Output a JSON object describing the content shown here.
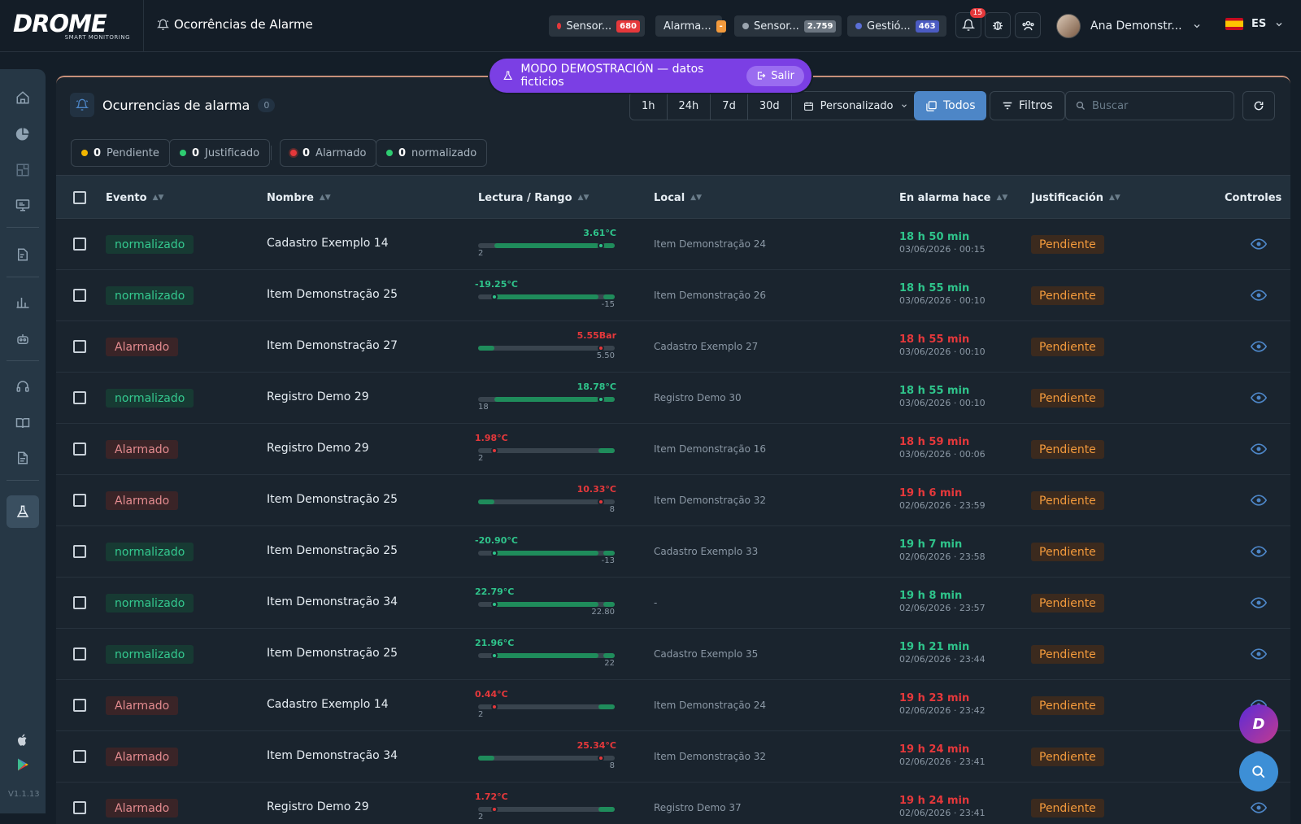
{
  "app": {
    "logo_text": "DROME",
    "logo_sub": "SMART MONITORING",
    "page_title": "Ocorrências de Alarme"
  },
  "header_pills": [
    {
      "label": "Sensor...",
      "count": "680",
      "dot": "#e5383b",
      "count_bg": "#e5383b"
    },
    {
      "label": "Alarma...",
      "count": "-",
      "dot": "",
      "count_bg": "#f39a3c"
    },
    {
      "label": "Sensor...",
      "count": "2.759",
      "dot": "#9aa4ae",
      "count_bg": "#6b7580"
    },
    {
      "label": "Gestió...",
      "count": "463",
      "dot": "#5b6fd6",
      "count_bg": "#4b5bc2"
    }
  ],
  "notifications_count": "15",
  "user": {
    "name": "Ana Demonstr...",
    "lang": "ES"
  },
  "version": "V1.1.13",
  "demo_banner": {
    "text": "MODO DEMOSTRACIÓN — datos ficticios",
    "exit": "Salir"
  },
  "card": {
    "title": "Ocurrencias de alarma",
    "count": "0",
    "ranges": [
      "1h",
      "24h",
      "7d",
      "30d"
    ],
    "custom": "Personalizado",
    "todos": "Todos",
    "filters": "Filtros",
    "search_placeholder": "Buscar"
  },
  "summary": [
    {
      "count": "0",
      "label": "Pendiente",
      "color": "#f2b600"
    },
    {
      "count": "0",
      "label": "Justificado",
      "color": "#2ecc71"
    },
    {
      "count": "0",
      "label": "Alarmado",
      "color": "#e5383b"
    },
    {
      "count": "0",
      "label": "normalizado",
      "color": "#2ecc71"
    }
  ],
  "columns": {
    "evento": "Evento",
    "nombre": "Nombre",
    "lectura": "Lectura / Rango",
    "local": "Local",
    "en_alarma": "En alarma hace",
    "justificacion": "Justificación",
    "controles": "Controles"
  },
  "rows": [
    {
      "event": "normalizado",
      "status": "norm",
      "name": "Cadastro Exemplo 14",
      "reading": "3.61°C",
      "limit": "2",
      "level": 0.9,
      "limit_side": "left",
      "local": "Item Demonstração 24",
      "duration": "18 h 50 min",
      "date": "03/06/2026 · 00:15",
      "justification": "Pendiente"
    },
    {
      "event": "normalizado",
      "status": "norm",
      "name": "Item Demonstração 25",
      "reading": "-19.25°C",
      "limit": "-15",
      "level": 0.12,
      "limit_side": "right",
      "local": "Item Demonstração 26",
      "duration": "18 h 55 min",
      "date": "03/06/2026 · 00:10",
      "justification": "Pendiente"
    },
    {
      "event": "Alarmado",
      "status": "alarm",
      "name": "Item Demonstração 27",
      "reading": "5.55Bar",
      "limit": "5.50",
      "level": 0.9,
      "limit_side": "right",
      "local": "Cadastro Exemplo 27",
      "duration": "18 h 55 min",
      "date": "03/06/2026 · 00:10",
      "justification": "Pendiente"
    },
    {
      "event": "normalizado",
      "status": "norm",
      "name": "Registro Demo 29",
      "reading": "18.78°C",
      "limit": "18",
      "level": 0.9,
      "limit_side": "left",
      "local": "Registro Demo 30",
      "duration": "18 h 55 min",
      "date": "03/06/2026 · 00:10",
      "justification": "Pendiente"
    },
    {
      "event": "Alarmado",
      "status": "alarm",
      "name": "Registro Demo 29",
      "reading": "1.98°C",
      "limit": "2",
      "level": 0.12,
      "limit_side": "left",
      "local": "Item Demonstração 16",
      "duration": "18 h 59 min",
      "date": "03/06/2026 · 00:06",
      "justification": "Pendiente"
    },
    {
      "event": "Alarmado",
      "status": "alarm",
      "name": "Item Demonstração 25",
      "reading": "10.33°C",
      "limit": "8",
      "level": 0.9,
      "limit_side": "right",
      "local": "Item Demonstração 32",
      "duration": "19 h 6 min",
      "date": "02/06/2026 · 23:59",
      "justification": "Pendiente"
    },
    {
      "event": "normalizado",
      "status": "norm",
      "name": "Item Demonstração 25",
      "reading": "-20.90°C",
      "limit": "-13",
      "level": 0.12,
      "limit_side": "right",
      "local": "Cadastro Exemplo 33",
      "duration": "19 h 7 min",
      "date": "02/06/2026 · 23:58",
      "justification": "Pendiente"
    },
    {
      "event": "normalizado",
      "status": "norm",
      "name": "Item Demonstração 34",
      "reading": "22.79°C",
      "limit": "22.80",
      "level": 0.12,
      "limit_side": "right",
      "local": "-",
      "duration": "19 h 8 min",
      "date": "02/06/2026 · 23:57",
      "justification": "Pendiente"
    },
    {
      "event": "normalizado",
      "status": "norm",
      "name": "Item Demonstração 25",
      "reading": "21.96°C",
      "limit": "22",
      "level": 0.12,
      "limit_side": "right",
      "local": "Cadastro Exemplo 35",
      "duration": "19 h 21 min",
      "date": "02/06/2026 · 23:44",
      "justification": "Pendiente"
    },
    {
      "event": "Alarmado",
      "status": "alarm",
      "name": "Cadastro Exemplo 14",
      "reading": "0.44°C",
      "limit": "2",
      "level": 0.12,
      "limit_side": "left",
      "local": "Item Demonstração 24",
      "duration": "19 h 23 min",
      "date": "02/06/2026 · 23:42",
      "justification": "Pendiente"
    },
    {
      "event": "Alarmado",
      "status": "alarm",
      "name": "Item Demonstração 34",
      "reading": "25.34°C",
      "limit": "8",
      "level": 0.9,
      "limit_side": "right",
      "local": "Item Demonstração 32",
      "duration": "19 h 24 min",
      "date": "02/06/2026 · 23:41",
      "justification": "Pendiente"
    },
    {
      "event": "Alarmado",
      "status": "alarm",
      "name": "Registro Demo 29",
      "reading": "1.72°C",
      "limit": "2",
      "level": 0.12,
      "limit_side": "left",
      "local": "Registro Demo 37",
      "duration": "19 h 24 min",
      "date": "02/06/2026 · 23:41",
      "justification": "Pendiente"
    }
  ],
  "colors": {
    "norm": "#2fc48b",
    "alarm": "#e5383b",
    "accent": "#4d86c7"
  }
}
